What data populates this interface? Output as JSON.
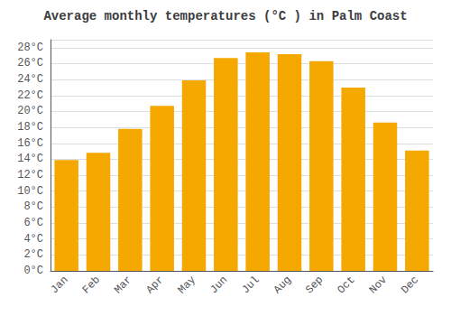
{
  "chart_data": {
    "type": "bar",
    "title": "Average monthly temperatures (°C ) in Palm Coast",
    "categories": [
      "Jan",
      "Feb",
      "Mar",
      "Apr",
      "May",
      "Jun",
      "Jul",
      "Aug",
      "Sep",
      "Oct",
      "Nov",
      "Dec"
    ],
    "values": [
      13.9,
      14.8,
      17.8,
      20.7,
      23.9,
      26.7,
      27.4,
      27.2,
      26.3,
      23.0,
      18.6,
      15.1
    ],
    "color": "#F5A800",
    "ylim": [
      0,
      29
    ],
    "yticks": [
      {
        "value": 0,
        "label": "0°C"
      },
      {
        "value": 2,
        "label": "2°C"
      },
      {
        "value": 4,
        "label": "4°C"
      },
      {
        "value": 6,
        "label": "6°C"
      },
      {
        "value": 8,
        "label": "8°C"
      },
      {
        "value": 10,
        "label": "10°C"
      },
      {
        "value": 12,
        "label": "12°C"
      },
      {
        "value": 14,
        "label": "14°C"
      },
      {
        "value": 16,
        "label": "16°C"
      },
      {
        "value": 18,
        "label": "18°C"
      },
      {
        "value": 20,
        "label": "20°C"
      },
      {
        "value": 22,
        "label": "22°C"
      },
      {
        "value": 24,
        "label": "24°C"
      },
      {
        "value": 26,
        "label": "26°C"
      },
      {
        "value": 28,
        "label": "28°C"
      }
    ],
    "grid": true
  }
}
